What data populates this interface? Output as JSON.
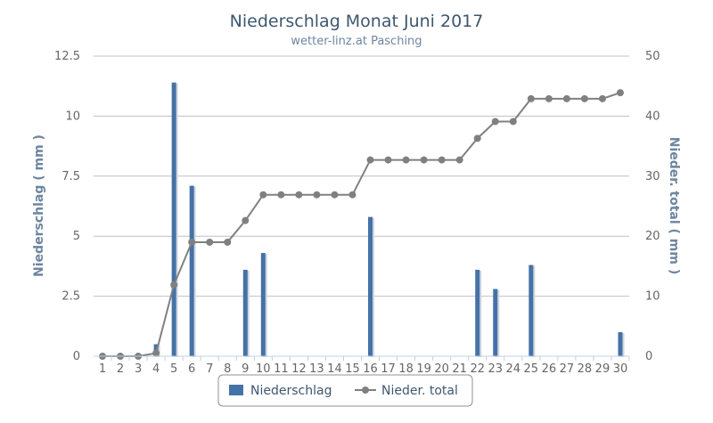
{
  "chart_data": {
    "type": "bar",
    "title": "Niederschlag Monat Juni 2017",
    "subtitle": "wetter-linz.at Pasching",
    "categories": [
      "1",
      "2",
      "3",
      "4",
      "5",
      "6",
      "7",
      "8",
      "9",
      "10",
      "11",
      "12",
      "13",
      "14",
      "15",
      "16",
      "17",
      "18",
      "19",
      "20",
      "21",
      "22",
      "23",
      "24",
      "25",
      "26",
      "27",
      "28",
      "29",
      "30"
    ],
    "ylabel_left": "Niederschlag ( mm )",
    "ylabel_right": "Nieder. total ( mm )",
    "ylim_left": [
      0,
      12.5
    ],
    "ylim_right": [
      0,
      50
    ],
    "yticks_left": [
      "0",
      "2.5",
      "5",
      "7.5",
      "10",
      "12.5"
    ],
    "yticks_right": [
      "0",
      "10",
      "20",
      "30",
      "40",
      "50"
    ],
    "grid": true,
    "legend_position": "bottom-center",
    "series": [
      {
        "name": "Niederschlag",
        "type": "bar",
        "axis": "left",
        "color": "#4572a7",
        "values": [
          0,
          0,
          0,
          0.5,
          11.4,
          7.1,
          0,
          0,
          3.6,
          4.3,
          0,
          0,
          0,
          0,
          0,
          5.8,
          0,
          0,
          0,
          0,
          0,
          3.6,
          2.8,
          0,
          3.8,
          0,
          0,
          0,
          0,
          1.0
        ]
      },
      {
        "name": "Nieder. total",
        "type": "line",
        "axis": "right",
        "color": "#808080",
        "values": [
          0,
          0,
          0,
          0.5,
          11.9,
          19.0,
          19.0,
          19.0,
          22.6,
          26.9,
          26.9,
          26.9,
          26.9,
          26.9,
          26.9,
          32.7,
          32.7,
          32.7,
          32.7,
          32.7,
          32.7,
          36.3,
          39.1,
          39.1,
          42.9,
          42.9,
          42.9,
          42.9,
          42.9,
          43.9
        ]
      }
    ]
  }
}
